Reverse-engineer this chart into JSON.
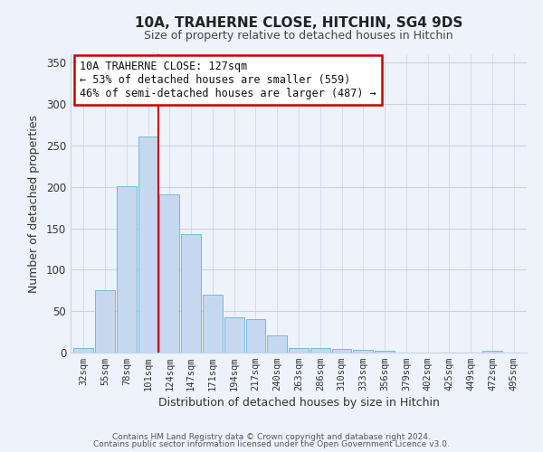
{
  "title": "10A, TRAHERNE CLOSE, HITCHIN, SG4 9DS",
  "subtitle": "Size of property relative to detached houses in Hitchin",
  "xlabel": "Distribution of detached houses by size in Hitchin",
  "ylabel": "Number of detached properties",
  "bar_color": "#c5d8f0",
  "bar_edge_color": "#7ab8d9",
  "background_color": "#eef2fb",
  "grid_color": "#c8d4e8",
  "marker_line_color": "#cc0000",
  "categories": [
    "32sqm",
    "55sqm",
    "78sqm",
    "101sqm",
    "124sqm",
    "147sqm",
    "171sqm",
    "194sqm",
    "217sqm",
    "240sqm",
    "263sqm",
    "286sqm",
    "310sqm",
    "333sqm",
    "356sqm",
    "379sqm",
    "402sqm",
    "425sqm",
    "449sqm",
    "472sqm",
    "495sqm"
  ],
  "values": [
    6,
    75,
    201,
    261,
    191,
    143,
    70,
    43,
    40,
    21,
    6,
    6,
    4,
    3,
    2,
    0,
    0,
    0,
    0,
    2,
    0
  ],
  "ylim": [
    0,
    360
  ],
  "yticks": [
    0,
    50,
    100,
    150,
    200,
    250,
    300,
    350
  ],
  "annotation_title": "10A TRAHERNE CLOSE: 127sqm",
  "annotation_line1": "← 53% of detached houses are smaller (559)",
  "annotation_line2": "46% of semi-detached houses are larger (487) →",
  "annotation_box_color": "#ffffff",
  "annotation_border_color": "#cc0000",
  "footer1": "Contains HM Land Registry data © Crown copyright and database right 2024.",
  "footer2": "Contains public sector information licensed under the Open Government Licence v3.0."
}
